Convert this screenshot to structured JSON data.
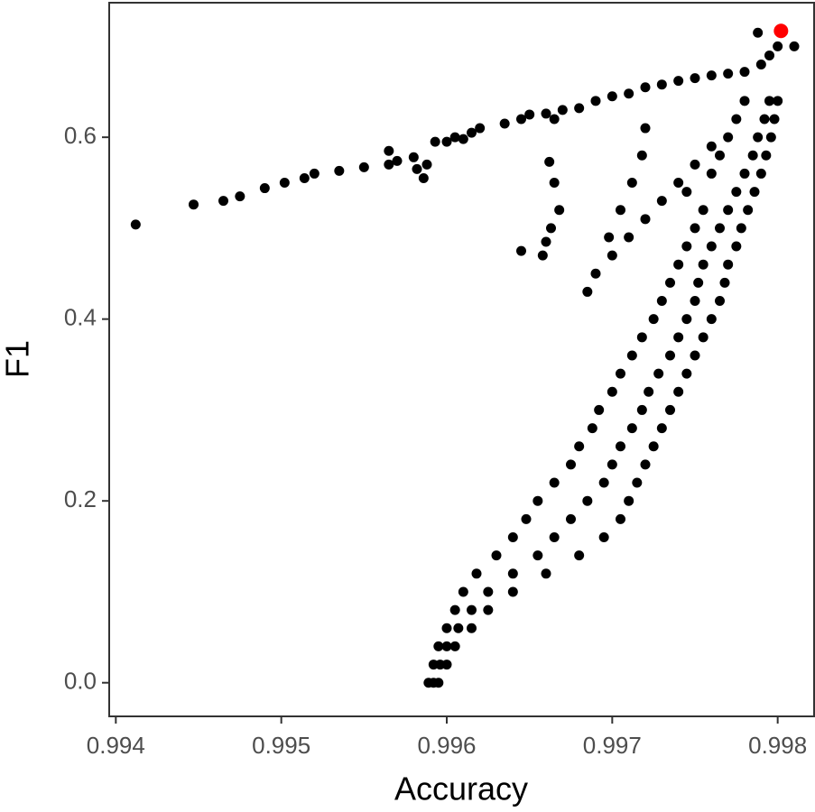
{
  "chart_data": {
    "type": "scatter",
    "x_label": "Accuracy",
    "y_label": "F1",
    "xlim": [
      0.99396,
      0.99822
    ],
    "ylim": [
      -0.037,
      0.748
    ],
    "xticks": [
      0.994,
      0.995,
      0.996,
      0.997,
      0.998
    ],
    "yticks": [
      {
        "value": 0,
        "label": "0.0"
      },
      0.2,
      0.4,
      0.6
    ],
    "series": [
      {
        "color": "#000000",
        "x": [
          0.99412,
          0.99447,
          0.99465,
          0.99475,
          0.9949,
          0.99502,
          0.99514,
          0.9952,
          0.99535,
          0.9955,
          0.99565,
          0.9957,
          0.9958,
          0.99588,
          0.996,
          0.9961,
          0.99565,
          0.99582,
          0.99586,
          0.99593,
          0.99605,
          0.99615,
          0.9962,
          0.99635,
          0.99645,
          0.9965,
          0.9966,
          0.99665,
          0.9967,
          0.9968,
          0.9969,
          0.997,
          0.9971,
          0.9972,
          0.9973,
          0.9974,
          0.9975,
          0.9976,
          0.9977,
          0.9978,
          0.9979,
          0.99795,
          0.998,
          0.9981,
          0.99788,
          0.9972,
          0.99718,
          0.99712,
          0.99705,
          0.99698,
          0.9969,
          0.99685,
          0.99662,
          0.99665,
          0.99668,
          0.99663,
          0.9966,
          0.99658,
          0.99645,
          0.997,
          0.9971,
          0.9972,
          0.9973,
          0.9974,
          0.9975,
          0.9976,
          0.99589,
          0.99592,
          0.99595,
          0.99592,
          0.99596,
          0.996,
          0.99595,
          0.996,
          0.99605,
          0.996,
          0.99607,
          0.99615,
          0.99605,
          0.99615,
          0.99625,
          0.9961,
          0.99625,
          0.9964,
          0.99618,
          0.9964,
          0.9966,
          0.9963,
          0.99655,
          0.9968,
          0.9964,
          0.99665,
          0.99695,
          0.99648,
          0.99675,
          0.99705,
          0.99655,
          0.99685,
          0.9971,
          0.99665,
          0.99695,
          0.99715,
          0.99675,
          0.997,
          0.9972,
          0.9968,
          0.99705,
          0.99725,
          0.99688,
          0.99712,
          0.9973,
          0.99692,
          0.99718,
          0.99735,
          0.997,
          0.99722,
          0.9974,
          0.99705,
          0.99728,
          0.99745,
          0.99712,
          0.99735,
          0.9975,
          0.99718,
          0.9974,
          0.99755,
          0.99725,
          0.99745,
          0.9976,
          0.9973,
          0.9975,
          0.99765,
          0.99735,
          0.99752,
          0.99768,
          0.9974,
          0.99755,
          0.9977,
          0.99745,
          0.9976,
          0.99775,
          0.9975,
          0.99765,
          0.99778,
          0.99755,
          0.9977,
          0.99782,
          0.99745,
          0.99775,
          0.99786,
          0.9976,
          0.9978,
          0.9979,
          0.99765,
          0.99785,
          0.99793,
          0.9977,
          0.99788,
          0.99796,
          0.99775,
          0.99792,
          0.99798,
          0.9978,
          0.99795,
          0.998
        ],
        "y": [
          0.504,
          0.526,
          0.53,
          0.535,
          0.544,
          0.55,
          0.555,
          0.56,
          0.563,
          0.567,
          0.57,
          0.574,
          0.578,
          0.57,
          0.595,
          0.598,
          0.585,
          0.565,
          0.555,
          0.595,
          0.6,
          0.605,
          0.61,
          0.615,
          0.62,
          0.625,
          0.626,
          0.62,
          0.63,
          0.632,
          0.64,
          0.645,
          0.648,
          0.655,
          0.658,
          0.662,
          0.665,
          0.668,
          0.67,
          0.672,
          0.68,
          0.69,
          0.7,
          0.7,
          0.715,
          0.61,
          0.58,
          0.55,
          0.52,
          0.49,
          0.45,
          0.43,
          0.573,
          0.55,
          0.52,
          0.5,
          0.485,
          0.47,
          0.475,
          0.47,
          0.49,
          0.51,
          0.53,
          0.55,
          0.57,
          0.59,
          0,
          0,
          0,
          0.02,
          0.02,
          0.02,
          0.04,
          0.04,
          0.04,
          0.06,
          0.06,
          0.06,
          0.08,
          0.08,
          0.08,
          0.1,
          0.1,
          0.1,
          0.12,
          0.12,
          0.12,
          0.14,
          0.14,
          0.14,
          0.16,
          0.16,
          0.16,
          0.18,
          0.18,
          0.18,
          0.2,
          0.2,
          0.2,
          0.22,
          0.22,
          0.22,
          0.24,
          0.24,
          0.24,
          0.26,
          0.26,
          0.26,
          0.28,
          0.28,
          0.28,
          0.3,
          0.3,
          0.3,
          0.32,
          0.32,
          0.32,
          0.34,
          0.34,
          0.34,
          0.36,
          0.36,
          0.36,
          0.38,
          0.38,
          0.38,
          0.4,
          0.4,
          0.4,
          0.42,
          0.42,
          0.42,
          0.44,
          0.44,
          0.44,
          0.46,
          0.46,
          0.46,
          0.48,
          0.48,
          0.48,
          0.5,
          0.5,
          0.5,
          0.52,
          0.52,
          0.52,
          0.54,
          0.54,
          0.54,
          0.56,
          0.56,
          0.56,
          0.58,
          0.58,
          0.58,
          0.6,
          0.6,
          0.6,
          0.62,
          0.62,
          0.62,
          0.64,
          0.64,
          0.64
        ]
      },
      {
        "color": "#ff0000",
        "x": [
          0.99802
        ],
        "y": [
          0.717
        ]
      }
    ]
  }
}
